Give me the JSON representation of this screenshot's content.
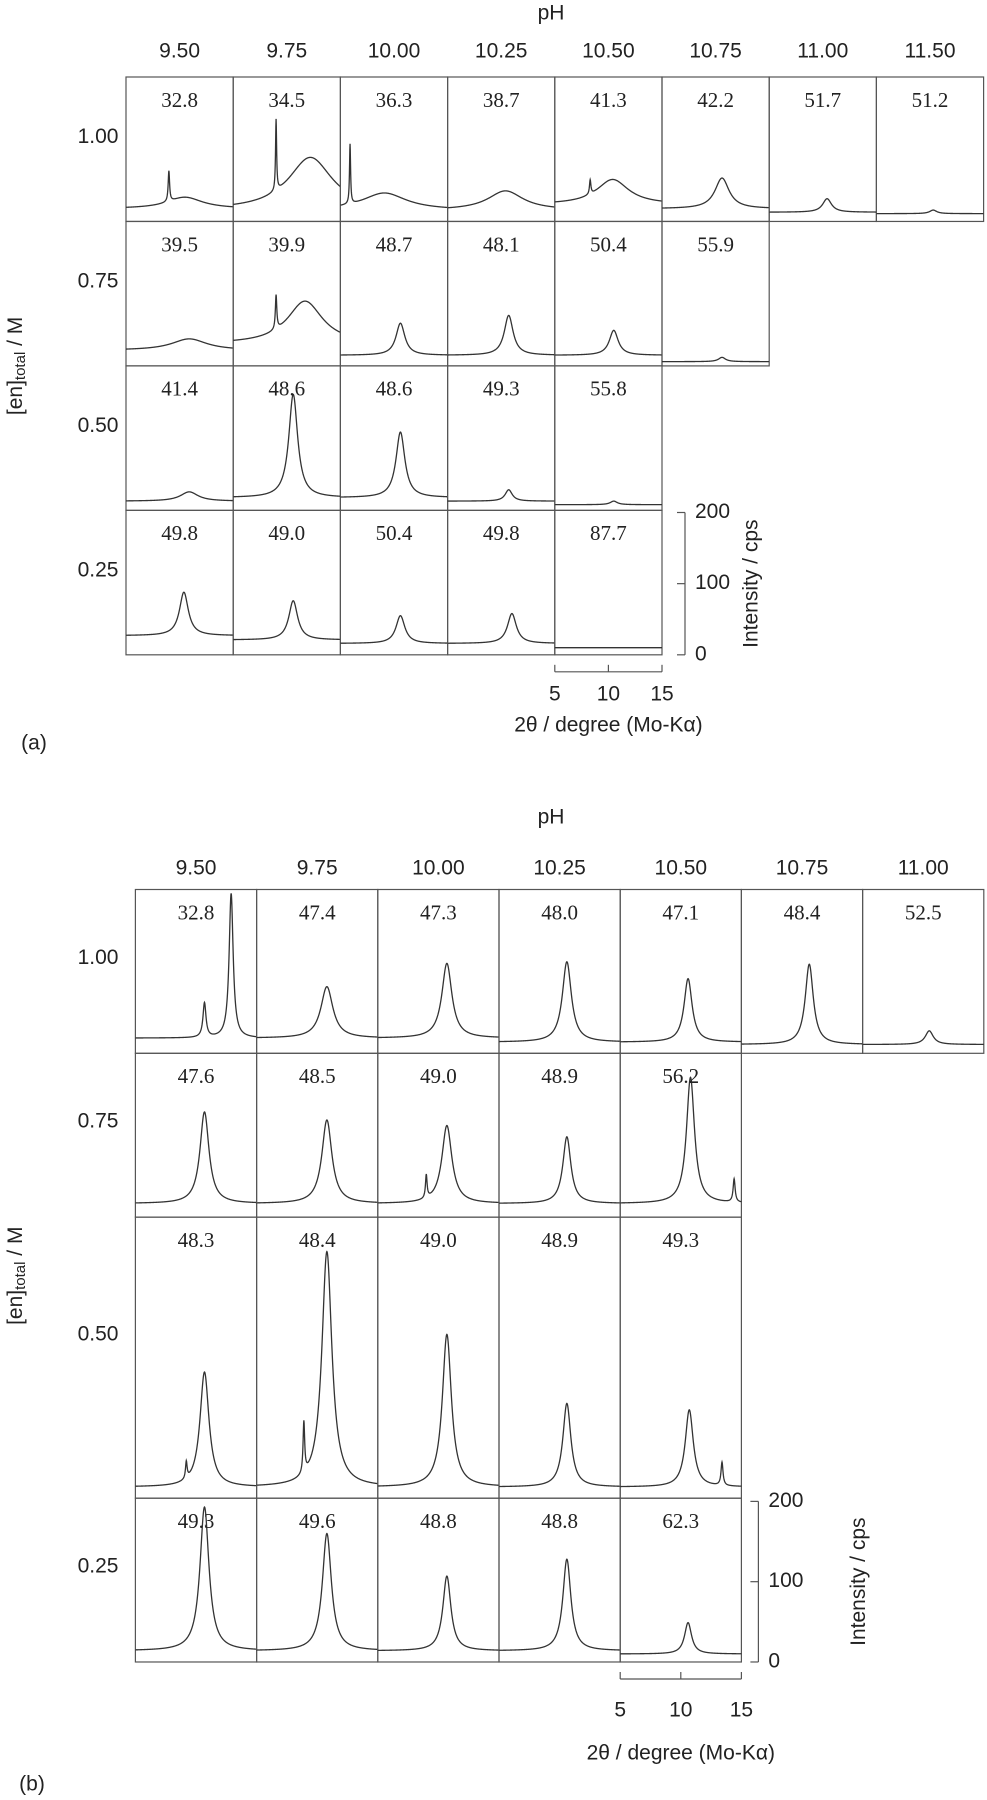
{
  "figures": [
    {
      "label": "(a)",
      "x_title": "pH",
      "y_title": {
        "main": "[en]",
        "sub": "total",
        "unit": " / M"
      },
      "columns": [
        "9.50",
        "9.75",
        "10.00",
        "10.25",
        "10.50",
        "10.75",
        "11.00",
        "11.50"
      ],
      "rows": [
        {
          "label": "1.00",
          "ylim": [
            0,
            203
          ],
          "cells": [
            {
              "label": "32.8",
              "baseline": 18,
              "peaks": [
                [
                  9.0,
                  43,
                  0.08
                ],
                [
                  10.5,
                  16,
                  2.0
                ]
              ]
            },
            {
              "label": "34.5",
              "baseline": 16,
              "peaks": [
                [
                  9.0,
                  100,
                  0.06
                ],
                [
                  12.2,
                  74,
                  2.5
                ]
              ]
            },
            {
              "label": "36.3",
              "baseline": 16,
              "peaks": [
                [
                  5.9,
                  84,
                  0.06
                ],
                [
                  9.1,
                  24,
                  2.5
                ]
              ]
            },
            {
              "label": "38.7",
              "baseline": 16,
              "peaks": [
                [
                  10.4,
                  27,
                  2.0
                ]
              ]
            },
            {
              "label": "41.3",
              "baseline": 24,
              "peaks": [
                [
                  8.3,
                  20,
                  0.08
                ],
                [
                  10.4,
                  35,
                  1.8
                ]
              ]
            },
            {
              "label": "42.2",
              "baseline": 18,
              "peaks": [
                [
                  10.6,
                  43,
                  0.8
                ]
              ]
            },
            {
              "label": "51.7",
              "baseline": 13,
              "peaks": [
                [
                  10.4,
                  19,
                  0.5
                ]
              ]
            },
            {
              "label": "51.2",
              "baseline": 11,
              "peaks": [
                [
                  10.3,
                  5,
                  0.4
                ]
              ]
            }
          ]
        },
        {
          "label": "0.75",
          "ylim": [
            0,
            203
          ],
          "cells": [
            {
              "label": "39.5",
              "baseline": 22,
              "peaks": [
                [
                  10.9,
                  16,
                  2.0
                ]
              ]
            },
            {
              "label": "39.9",
              "baseline": 31,
              "peaks": [
                [
                  9.0,
                  48,
                  0.08
                ],
                [
                  11.7,
                  60,
                  2.0
                ]
              ]
            },
            {
              "label": "48.7",
              "baseline": 15,
              "peaks": [
                [
                  10.6,
                  45,
                  0.5
                ]
              ]
            },
            {
              "label": "48.1",
              "baseline": 15,
              "peaks": [
                [
                  10.7,
                  56,
                  0.5
                ]
              ]
            },
            {
              "label": "50.4",
              "baseline": 15,
              "peaks": [
                [
                  10.5,
                  35,
                  0.5
                ]
              ]
            },
            {
              "label": "55.9",
              "baseline": 6,
              "peaks": [
                [
                  10.6,
                  6,
                  0.4
                ]
              ]
            }
          ]
        },
        {
          "label": "0.50",
          "ylim": [
            0,
            203
          ],
          "cells": [
            {
              "label": "41.4",
              "baseline": 13,
              "peaks": [
                [
                  10.9,
                  13,
                  1.0
                ]
              ]
            },
            {
              "label": "48.6",
              "baseline": 18,
              "peaks": [
                [
                  10.6,
                  145,
                  0.5
                ]
              ]
            },
            {
              "label": "48.6",
              "baseline": 18,
              "peaks": [
                [
                  10.6,
                  92,
                  0.5
                ]
              ]
            },
            {
              "label": "49.3",
              "baseline": 13,
              "peaks": [
                [
                  10.7,
                  16,
                  0.4
                ]
              ]
            },
            {
              "label": "55.8",
              "baseline": 8,
              "peaks": [
                [
                  10.5,
                  5,
                  0.4
                ]
              ]
            }
          ]
        },
        {
          "label": "0.25",
          "ylim": [
            0,
            203
          ],
          "cells": [
            {
              "label": "49.8",
              "baseline": 27,
              "peaks": [
                [
                  10.4,
                  61,
                  0.5
                ]
              ]
            },
            {
              "label": "49.0",
              "baseline": 21,
              "peaks": [
                [
                  10.6,
                  55,
                  0.5
                ]
              ]
            },
            {
              "label": "50.4",
              "baseline": 16,
              "peaks": [
                [
                  10.6,
                  39,
                  0.5
                ]
              ]
            },
            {
              "label": "49.8",
              "baseline": 16,
              "peaks": [
                [
                  11.0,
                  42,
                  0.5
                ]
              ]
            },
            {
              "label": "87.7",
              "baseline": 10,
              "peaks": []
            }
          ]
        }
      ],
      "intensity_axis": {
        "label": "Intensity / cps",
        "ticks": [
          0,
          100,
          200
        ]
      },
      "angle_axis": {
        "label": "2θ / degree (Mo-Kα)",
        "xlim": [
          5,
          15
        ],
        "ticks": [
          5,
          10,
          15
        ]
      }
    },
    {
      "label": "(b)",
      "x_title": "pH",
      "y_title": {
        "main": "[en]",
        "sub": "total",
        "unit": " / M"
      },
      "columns": [
        "9.50",
        "9.75",
        "10.00",
        "10.25",
        "10.50",
        "10.75",
        "11.00"
      ],
      "rows": [
        {
          "label": "1.00",
          "ylim": [
            0,
            204
          ],
          "cells": [
            {
              "label": "32.8",
              "baseline": 19,
              "peaks": [
                [
                  10.7,
                  43,
                  0.15
                ],
                [
                  12.9,
                  180,
                  0.2
                ]
              ]
            },
            {
              "label": "47.4",
              "baseline": 19,
              "peaks": [
                [
                  10.8,
                  64,
                  0.6
                ]
              ]
            },
            {
              "label": "47.3",
              "baseline": 19,
              "peaks": [
                [
                  10.7,
                  93,
                  0.5
                ]
              ]
            },
            {
              "label": "48.0",
              "baseline": 14,
              "peaks": [
                [
                  10.6,
                  100,
                  0.45
                ]
              ]
            },
            {
              "label": "47.1",
              "baseline": 14,
              "peaks": [
                [
                  10.6,
                  79,
                  0.4
                ]
              ]
            },
            {
              "label": "48.4",
              "baseline": 11,
              "peaks": [
                [
                  10.6,
                  100,
                  0.4
                ]
              ]
            },
            {
              "label": "52.5",
              "baseline": 11,
              "peaks": [
                [
                  10.5,
                  17,
                  0.4
                ]
              ]
            }
          ]
        },
        {
          "label": "0.75",
          "ylim": [
            0,
            204
          ],
          "cells": [
            {
              "label": "47.6",
              "baseline": 17,
              "peaks": [
                [
                  10.7,
                  114,
                  0.45
                ]
              ]
            },
            {
              "label": "48.5",
              "baseline": 17,
              "peaks": [
                [
                  10.8,
                  104,
                  0.5
                ]
              ]
            },
            {
              "label": "49.0",
              "baseline": 17,
              "peaks": [
                [
                  9.0,
                  29,
                  0.08
                ],
                [
                  10.7,
                  97,
                  0.5
                ]
              ]
            },
            {
              "label": "48.9",
              "baseline": 17,
              "peaks": [
                [
                  10.6,
                  83,
                  0.4
                ]
              ]
            },
            {
              "label": "56.2",
              "baseline": 17,
              "peaks": [
                [
                  10.8,
                  157,
                  0.4
                ],
                [
                  14.4,
                  29,
                  0.1
                ]
              ]
            }
          ]
        },
        {
          "label": "0.50",
          "ylim": [
            0,
            350
          ],
          "cells": [
            {
              "label": "48.3",
              "baseline": 14,
              "peaks": [
                [
                  9.2,
                  21,
                  0.08
                ],
                [
                  10.7,
                  143,
                  0.45
                ]
              ]
            },
            {
              "label": "48.4",
              "baseline": 14,
              "peaks": [
                [
                  8.9,
                  64,
                  0.08
                ],
                [
                  10.8,
                  293,
                  0.5
                ]
              ]
            },
            {
              "label": "49.0",
              "baseline": 14,
              "peaks": [
                [
                  10.7,
                  190,
                  0.45
                ]
              ]
            },
            {
              "label": "48.9",
              "baseline": 14,
              "peaks": [
                [
                  10.6,
                  104,
                  0.4
                ]
              ]
            },
            {
              "label": "49.3",
              "baseline": 14,
              "peaks": [
                [
                  10.7,
                  96,
                  0.4
                ],
                [
                  13.4,
                  29,
                  0.1
                ]
              ]
            }
          ]
        },
        {
          "label": "0.25",
          "ylim": [
            0,
            204
          ],
          "cells": [
            {
              "label": "49.3",
              "baseline": 14,
              "peaks": [
                [
                  10.7,
                  179,
                  0.45
                ]
              ]
            },
            {
              "label": "49.6",
              "baseline": 14,
              "peaks": [
                [
                  10.8,
                  146,
                  0.45
                ]
              ]
            },
            {
              "label": "48.8",
              "baseline": 14,
              "peaks": [
                [
                  10.7,
                  93,
                  0.4
                ]
              ]
            },
            {
              "label": "48.8",
              "baseline": 14,
              "peaks": [
                [
                  10.6,
                  114,
                  0.4
                ]
              ]
            },
            {
              "label": "62.3",
              "baseline": 10,
              "peaks": [
                [
                  10.6,
                  39,
                  0.35
                ]
              ]
            }
          ]
        }
      ],
      "intensity_axis": {
        "label": "Intensity / cps",
        "ticks": [
          0,
          100,
          200
        ]
      },
      "angle_axis": {
        "label": "2θ / degree (Mo-Kα)",
        "xlim": [
          5,
          15
        ],
        "ticks": [
          5,
          10,
          15
        ]
      }
    }
  ]
}
